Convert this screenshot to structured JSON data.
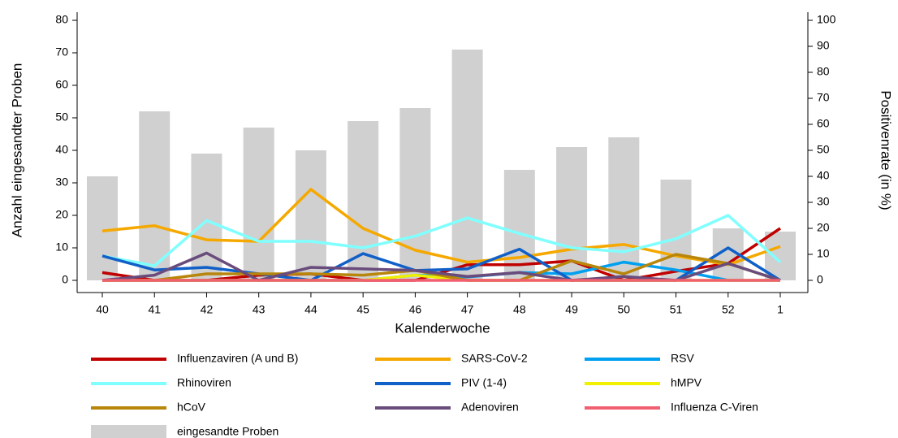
{
  "chart_data": {
    "type": "bar",
    "x_label": "Kalenderwoche",
    "y_label": "Anzahl eingesandter Proben",
    "y2_label": "Positivenrate (in %)",
    "categories": [
      "40",
      "41",
      "42",
      "43",
      "44",
      "45",
      "46",
      "47",
      "48",
      "49",
      "50",
      "51",
      "52",
      "1"
    ],
    "ylim": [
      0,
      80
    ],
    "yticks": [
      0,
      10,
      20,
      30,
      40,
      50,
      60,
      70,
      80
    ],
    "y2lim": [
      0,
      100
    ],
    "y2ticks": [
      0,
      10,
      20,
      30,
      40,
      50,
      60,
      70,
      80,
      90,
      100
    ],
    "series": [
      {
        "name": "Influenzaviren (A und B)",
        "type": "line",
        "axis": "y2",
        "color": "#c00000",
        "values": [
          3,
          0,
          0,
          2,
          2.5,
          0,
          0,
          6,
          6,
          7.5,
          0,
          3.5,
          6.5,
          20
        ]
      },
      {
        "name": "SARS-CoV-2",
        "type": "line",
        "axis": "y2",
        "color": "#f5a800",
        "values": [
          19,
          21,
          15.6,
          15,
          35,
          20,
          11.6,
          7,
          8.8,
          12,
          13.8,
          9.4,
          6,
          13
        ]
      },
      {
        "name": "RSV",
        "type": "line",
        "axis": "y2",
        "color": "#00a0f0",
        "values": [
          0,
          0,
          0,
          0,
          0,
          0,
          2,
          1.3,
          3,
          2.5,
          7,
          4,
          0,
          0
        ]
      },
      {
        "name": "Rhinoviren",
        "type": "line",
        "axis": "y2",
        "color": "#80ffff",
        "values": [
          9.4,
          5.6,
          23,
          15,
          15,
          12.5,
          17,
          24,
          18,
          12.5,
          11,
          16,
          25,
          7
        ]
      },
      {
        "name": "PIV (1-4)",
        "type": "line",
        "axis": "y2",
        "color": "#1060c8",
        "values": [
          9.4,
          4,
          5,
          2.5,
          0,
          10.3,
          3.8,
          4.4,
          12,
          0,
          0,
          0,
          12.5,
          0
        ]
      },
      {
        "name": "hMPV",
        "type": "line",
        "axis": "y2",
        "color": "#f0f000",
        "values": [
          0,
          0,
          0,
          0,
          0,
          0,
          2,
          0,
          0,
          0,
          0,
          0,
          0,
          0
        ]
      },
      {
        "name": "hCoV",
        "type": "line",
        "axis": "y2",
        "color": "#b8860b",
        "values": [
          0,
          0,
          2.5,
          2.5,
          2.5,
          2,
          3.8,
          0,
          0,
          7.5,
          2.5,
          10,
          6.5,
          0
        ]
      },
      {
        "name": "Adenoviren",
        "type": "line",
        "axis": "y2",
        "color": "#6a4c7c",
        "values": [
          0,
          2,
          10.5,
          0,
          5,
          4.4,
          3.8,
          1.5,
          3,
          0,
          1.5,
          0,
          6.5,
          0
        ]
      },
      {
        "name": "Influenza C-Viren",
        "type": "line",
        "axis": "y2",
        "color": "#f06070",
        "values": [
          0,
          0,
          0,
          0,
          0,
          0,
          0,
          0,
          0,
          0,
          0,
          0,
          0,
          0
        ]
      },
      {
        "name": "eingesandte Proben",
        "type": "bar",
        "color": "#d0d0d0",
        "values": [
          32,
          52,
          39,
          47,
          40,
          49,
          53,
          71,
          34,
          41,
          44,
          31,
          16,
          15
        ]
      }
    ]
  }
}
